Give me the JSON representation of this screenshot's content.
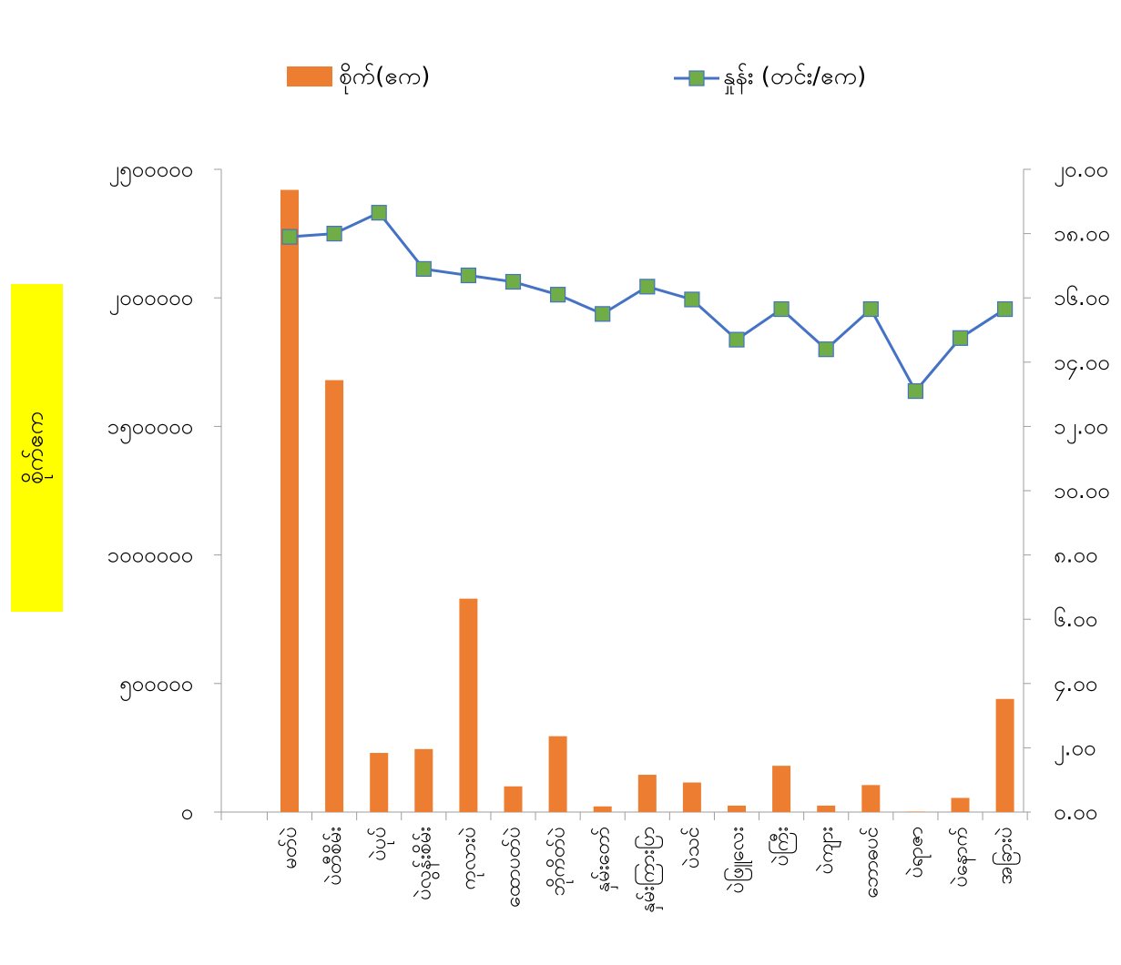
{
  "chart_data": {
    "type": "bar",
    "categories": [
      "မတ်ပဲ",
      "ပဲတီစိမ်း",
      "ပဲပုပ်",
      "ပဲလွန်းစိမ်း",
      "ကုလားပဲ",
      "ထောပတ်ပဲ",
      "ဘိုကိတ်ပဲ",
      "နှမ်းတော်",
      "နှမ်းကြားပြာ",
      "ပဲသင်",
      "ပဲဖြူလေး",
      "ပဲကြီး",
      "ပဲကျား",
      "ဘောဓပင်",
      "ပဲရာဇာ",
      "ပဲနောက်",
      "အခြားပဲ"
    ],
    "series": [
      {
        "name": "စိုက်(ဧက)",
        "kind": "bar",
        "axis": "left",
        "color": "#ED7D31",
        "values": [
          2420000,
          1680000,
          230000,
          245000,
          830000,
          100000,
          295000,
          22000,
          145000,
          115000,
          25000,
          180000,
          25000,
          105000,
          2000,
          55000,
          440000
        ]
      },
      {
        "name": "နှုန်း (တင်း/ဧက)",
        "kind": "line",
        "axis": "right",
        "color": "#4472C4",
        "marker_color": "#70AD47",
        "values": [
          17.9,
          18.0,
          18.65,
          16.9,
          16.7,
          16.5,
          16.1,
          15.5,
          16.35,
          15.95,
          14.7,
          15.65,
          14.4,
          15.65,
          13.1,
          14.75,
          15.65
        ]
      }
    ],
    "y_left": {
      "ylim": [
        0,
        2500000
      ],
      "ticks": [
        0,
        500000,
        1000000,
        1500000,
        2000000,
        2500000
      ],
      "tick_labels": [
        "၀",
        "၅၀၀၀၀၀",
        "၁၀၀၀၀၀၀",
        "၁၅၀၀၀၀၀",
        "၂၀၀၀၀၀၀",
        "၂၅၀၀၀၀၀"
      ]
    },
    "y_right": {
      "ylim": [
        0,
        20
      ],
      "ticks": [
        0,
        2,
        4,
        6,
        8,
        10,
        12,
        14,
        16,
        18,
        20
      ],
      "tick_labels": [
        "၀.၀၀",
        "၂.၀၀",
        "၄.၀၀",
        "၆.၀၀",
        "၈.၀၀",
        "၁၀.၀၀",
        "၁၂.၀၀",
        "၁၄.၀၀",
        "၁၆.၀၀",
        "၁၈.၀၀",
        "၂၀.၀၀"
      ]
    },
    "ylabel": "စိုက်ဧက",
    "ylabel_bg": "#FFFF00",
    "title": "",
    "xlabel": "",
    "legend_position": "top",
    "grid": false
  }
}
